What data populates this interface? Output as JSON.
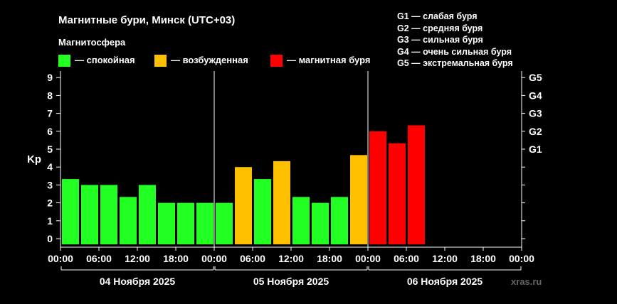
{
  "header": {
    "title": "Магнитные бури, Минск (UTC+03)",
    "magnetosphere_label": "Магнитосфера"
  },
  "legend": [
    {
      "label": "— спокойная",
      "color": "#22ff22"
    },
    {
      "label": "— возбужденная",
      "color": "#ffc000"
    },
    {
      "label": "— магнитная буря",
      "color": "#ff0000"
    }
  ],
  "storm_scale": [
    {
      "label": "G1 — слабая буря"
    },
    {
      "label": "G2 — средняя буря"
    },
    {
      "label": "G3 — сильная буря"
    },
    {
      "label": "G4 — очень сильная буря"
    },
    {
      "label": "G5 — экстремальная буря"
    }
  ],
  "watermark": "xras.ru",
  "chart_data": {
    "type": "bar",
    "ylabel": "Kp",
    "ylim": [
      0,
      9
    ],
    "y_ticks": [
      "0",
      "1",
      "2",
      "3",
      "4",
      "5",
      "6",
      "7",
      "8",
      "9"
    ],
    "right_ticks": [
      {
        "label": "G1",
        "value": 5
      },
      {
        "label": "G2",
        "value": 6
      },
      {
        "label": "G3",
        "value": 7
      },
      {
        "label": "G4",
        "value": 8
      },
      {
        "label": "G5",
        "value": 9
      }
    ],
    "x_tick_labels": [
      "00:00",
      "06:00",
      "12:00",
      "18:00",
      "00:00",
      "06:00",
      "12:00",
      "18:00",
      "00:00",
      "06:00",
      "12:00",
      "18:00",
      "00:00"
    ],
    "days": [
      "04 Ноября 2025",
      "05 Ноября 2025",
      "06 Ноября 2025"
    ],
    "slots_per_day": 8,
    "values": [
      3.33,
      3.0,
      3.0,
      2.33,
      3.0,
      2.0,
      2.0,
      2.0,
      2.0,
      4.0,
      3.33,
      4.33,
      2.33,
      2.0,
      2.33,
      4.67,
      6.0,
      5.33,
      6.33
    ],
    "colors": {
      "quiet": "#22ff22",
      "active": "#ffc000",
      "storm": "#ff0000"
    },
    "grid": false
  }
}
